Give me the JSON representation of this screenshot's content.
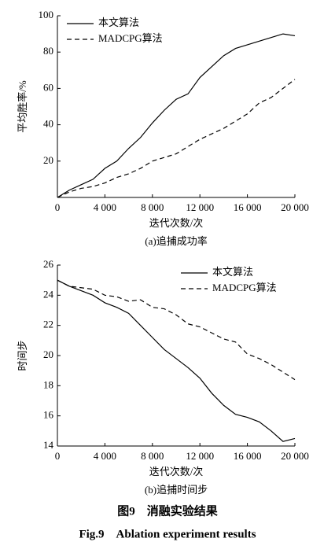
{
  "chart_data": [
    {
      "type": "line",
      "subtitle": "(a)追捕成功率",
      "xlabel": "迭代次数/次",
      "ylabel": "平均胜率/%",
      "x": [
        0,
        1000,
        2000,
        3000,
        4000,
        5000,
        6000,
        7000,
        8000,
        9000,
        10000,
        11000,
        12000,
        13000,
        14000,
        15000,
        16000,
        17000,
        18000,
        19000,
        20000
      ],
      "series": [
        {
          "name": "本文算法",
          "color": "#000000",
          "line_style": "solid",
          "values": [
            0,
            4,
            7,
            10,
            16,
            20,
            27,
            33,
            41,
            48,
            54,
            57,
            66,
            72,
            78,
            82,
            84,
            86,
            88,
            90,
            89
          ]
        },
        {
          "name": "MADCPG算法",
          "color": "#000000",
          "line_style": "dashed",
          "values": [
            0,
            3,
            5,
            6,
            8,
            11,
            13,
            16,
            20,
            22,
            24,
            28,
            32,
            35,
            38,
            42,
            46,
            52,
            55,
            60,
            65
          ]
        }
      ],
      "xlim": [
        0,
        20000
      ],
      "ylim": [
        0,
        100
      ],
      "xticks": [
        0,
        {
          "value": 4000,
          "label": "4 000"
        },
        {
          "value": 8000,
          "label": "8 000"
        },
        {
          "value": 12000,
          "label": "12 000"
        },
        {
          "value": 16000,
          "label": "16 000"
        },
        {
          "value": 20000,
          "label": "20 000"
        }
      ],
      "yticks": [
        20,
        40,
        60,
        80,
        100
      ],
      "legend": "upper left"
    },
    {
      "type": "line",
      "subtitle": "(b)追捕时间步",
      "xlabel": "迭代次数/次",
      "ylabel": "时间步",
      "x": [
        0,
        1000,
        2000,
        3000,
        4000,
        5000,
        6000,
        7000,
        8000,
        9000,
        10000,
        11000,
        12000,
        13000,
        14000,
        15000,
        16000,
        17000,
        18000,
        19000,
        20000
      ],
      "series": [
        {
          "name": "本文算法",
          "color": "#000000",
          "line_style": "solid",
          "values": [
            25,
            24.6,
            24.3,
            24.0,
            23.5,
            23.2,
            22.8,
            22.0,
            21.2,
            20.4,
            19.8,
            19.2,
            18.5,
            17.5,
            16.7,
            16.1,
            15.9,
            15.6,
            15.0,
            14.3,
            14.5
          ]
        },
        {
          "name": "MADCPG算法",
          "color": "#000000",
          "line_style": "dashed",
          "values": [
            25,
            24.6,
            24.5,
            24.4,
            24.0,
            23.9,
            23.6,
            23.7,
            23.2,
            23.1,
            22.7,
            22.1,
            21.9,
            21.5,
            21.1,
            20.9,
            20.1,
            19.8,
            19.4,
            18.9,
            18.4
          ]
        }
      ],
      "xlim": [
        0,
        20000
      ],
      "ylim": [
        14,
        26
      ],
      "xticks": [
        0,
        {
          "value": 4000,
          "label": "4 000"
        },
        {
          "value": 8000,
          "label": "8 000"
        },
        {
          "value": 12000,
          "label": "12 000"
        },
        {
          "value": 16000,
          "label": "16 000"
        },
        {
          "value": 20000,
          "label": "20 000"
        }
      ],
      "yticks": [
        14,
        16,
        18,
        20,
        22,
        24,
        26
      ],
      "legend": "upper right"
    }
  ],
  "caption": {
    "cn": "图9　消融实验结果",
    "en": "Fig.9　Ablation experiment results"
  }
}
